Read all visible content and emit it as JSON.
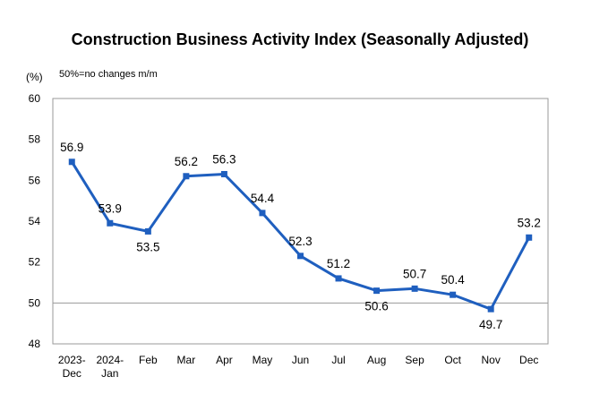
{
  "chart_data": {
    "type": "line",
    "title": "Construction Business Activity Index (Seasonally Adjusted)",
    "unit_label": "(%)",
    "annotation": "50%=no changes m/m",
    "categories": [
      [
        "2023-",
        "Dec"
      ],
      [
        "2024-",
        "Jan"
      ],
      [
        "Feb"
      ],
      [
        "Mar"
      ],
      [
        "Apr"
      ],
      [
        "May"
      ],
      [
        "Jun"
      ],
      [
        "Jul"
      ],
      [
        "Aug"
      ],
      [
        "Sep"
      ],
      [
        "Oct"
      ],
      [
        "Nov"
      ],
      [
        "Dec"
      ]
    ],
    "series": [
      {
        "values": [
          56.9,
          53.9,
          53.5,
          56.2,
          56.3,
          54.4,
          52.3,
          51.2,
          50.6,
          50.7,
          50.4,
          49.7,
          53.2
        ]
      }
    ],
    "data_labels": [
      "56.9",
      "53.9",
      "53.5",
      "56.2",
      "56.3",
      "54.4",
      "52.3",
      "51.2",
      "50.6",
      "50.7",
      "50.4",
      "49.7",
      "53.2"
    ],
    "yticks": [
      "60",
      "58",
      "56",
      "54",
      "52",
      "50",
      "48"
    ],
    "ylim": [
      48,
      60
    ],
    "reference_line": 50,
    "grid": false,
    "line_color": "#1f5fbf"
  }
}
